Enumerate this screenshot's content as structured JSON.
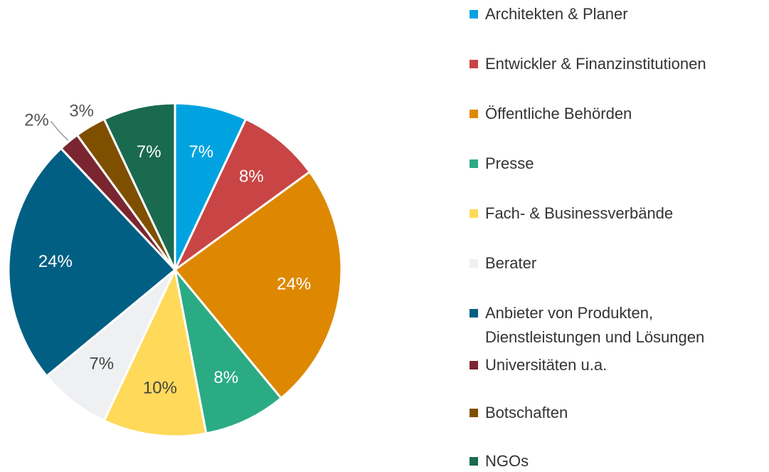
{
  "chart_data": {
    "type": "pie",
    "categories": [
      "Architekten & Planer",
      "Entwickler & Finanzinstitutionen",
      "Öffentliche Behörden",
      "Presse",
      "Fach- & Businessverbände",
      "Berater",
      "Anbieter von Produkten, Dienstleistungen und Lösungen",
      "Universitäten u.a.",
      "Botschaften",
      "NGOs"
    ],
    "values": [
      7,
      8,
      24,
      8,
      10,
      7,
      24,
      2,
      3,
      7
    ],
    "value_labels": [
      "7%",
      "8%",
      "24%",
      "8%",
      "10%",
      "7%",
      "24%",
      "2%",
      "3%",
      "7%"
    ],
    "colors": [
      "#00a3e0",
      "#c94545",
      "#dd8800",
      "#2bab84",
      "#ffd95a",
      "#eef0f2",
      "#005f83",
      "#7a2630",
      "#7f4f00",
      "#1a6a50"
    ],
    "legend": "right"
  }
}
